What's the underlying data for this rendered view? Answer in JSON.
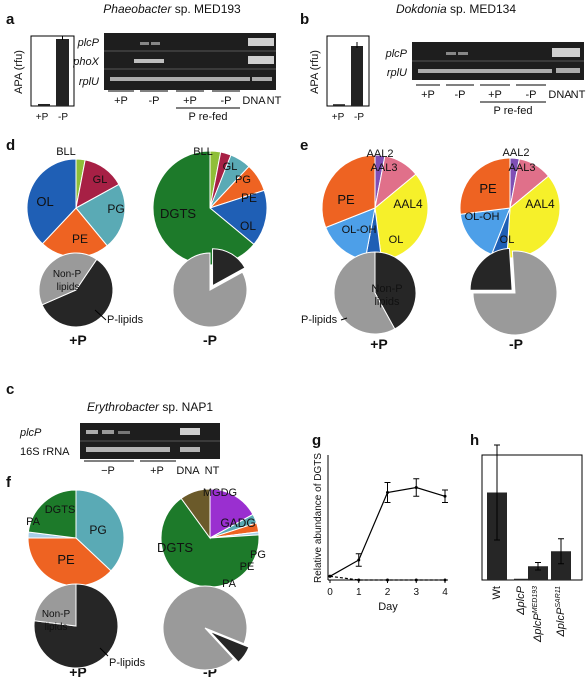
{
  "panels": {
    "a": {
      "letter": "a",
      "organism": "Phaeobacter",
      "strain": "sp. MED193",
      "bar_ylabel": "APA (rfu)",
      "bar_categories": [
        "+P",
        "-P"
      ],
      "bar_values": [
        0.03,
        1.0
      ],
      "gel_rows": [
        "plcP",
        "phoX",
        "rplU"
      ],
      "lanes": [
        "+P",
        "-P",
        "+P",
        "-P",
        "DNA",
        "NT"
      ],
      "refed_label": "P re-fed"
    },
    "b": {
      "letter": "b",
      "organism": "Dokdonia",
      "strain": "sp. MED134",
      "bar_ylabel": "APA (rfu)",
      "bar_categories": [
        "+P",
        "-P"
      ],
      "bar_values": [
        0.03,
        1.0
      ],
      "gel_rows": [
        "plcP",
        "rplU"
      ],
      "lanes": [
        "+P",
        "-P",
        "+P",
        "-P",
        "DNA",
        "NT"
      ],
      "refed_label": "P re-fed"
    },
    "c": {
      "letter": "c",
      "organism": "Erythrobacter",
      "strain": "sp. NAP1",
      "gel_rows": [
        "plcP",
        "16S rRNA"
      ],
      "lanes": [
        "−P",
        "+P",
        "DNA",
        "NT"
      ]
    },
    "d": {
      "letter": "d",
      "conditions": [
        "+P",
        "-P"
      ]
    },
    "e": {
      "letter": "e",
      "conditions": [
        "+P",
        "-P"
      ]
    },
    "f": {
      "letter": "f",
      "conditions": [
        "+P",
        "-P"
      ]
    },
    "g": {
      "letter": "g"
    },
    "h": {
      "letter": "h"
    }
  },
  "colors": {
    "OL": "#1f5fb5",
    "PE": "#ee6322",
    "PG": "#5aaab5",
    "GL": "#a72045",
    "BLL": "#8fbf38",
    "DGTS": "#1d7a2a",
    "AAL2": "#7f4fb5",
    "AAL3": "#e0708a",
    "AAL4": "#f6f02a",
    "OL-OH": "#4d9fe8",
    "PA": "#a8cfe8",
    "GADG": "#9a2fd0",
    "MGDG": "#6b5a2a",
    "p_lipids": "#262626",
    "non_p_lipids": "#9a9a9a"
  },
  "chart_data": [
    {
      "type": "pie",
      "panel": "d",
      "condition": "+P",
      "slices": [
        {
          "label": "BLL",
          "value": 3
        },
        {
          "label": "GL",
          "value": 14
        },
        {
          "label": "PG",
          "value": 22
        },
        {
          "label": "PE",
          "value": 23
        },
        {
          "label": "OL",
          "value": 38
        }
      ],
      "lipid_class": [
        {
          "label": "P-lipids",
          "value": 59
        },
        {
          "label": "Non-P lipids",
          "value": 41
        }
      ]
    },
    {
      "type": "pie",
      "panel": "d",
      "condition": "-P",
      "slices": [
        {
          "label": "BLL",
          "value": 3
        },
        {
          "label": "GL",
          "value": 3
        },
        {
          "label": "PG",
          "value": 6
        },
        {
          "label": "PE",
          "value": 8
        },
        {
          "label": "OL",
          "value": 16
        },
        {
          "label": "DGTS",
          "value": 64
        }
      ],
      "lipid_class": [
        {
          "label": "P-lipids",
          "value": 17
        },
        {
          "label": "Non-P lipids",
          "value": 83
        }
      ]
    },
    {
      "type": "pie",
      "panel": "e",
      "condition": "+P",
      "slices": [
        {
          "label": "AAL2",
          "value": 3
        },
        {
          "label": "AAL3",
          "value": 11
        },
        {
          "label": "AAL4",
          "value": 34
        },
        {
          "label": "OL",
          "value": 5
        },
        {
          "label": "OL-OH",
          "value": 16
        },
        {
          "label": "PE",
          "value": 31
        }
      ],
      "lipid_class": [
        {
          "label": "P-lipids",
          "value": 42
        },
        {
          "label": "Non-P lipids",
          "value": 58
        }
      ]
    },
    {
      "type": "pie",
      "panel": "e",
      "condition": "-P",
      "slices": [
        {
          "label": "AAL2",
          "value": 3
        },
        {
          "label": "AAL3",
          "value": 11
        },
        {
          "label": "AAL4",
          "value": 37
        },
        {
          "label": "OL",
          "value": 5
        },
        {
          "label": "OL-OH",
          "value": 17
        },
        {
          "label": "PE",
          "value": 27
        }
      ],
      "lipid_class": [
        {
          "label": "P-lipids",
          "value": 24
        },
        {
          "label": "Non-P lipids",
          "value": 76
        }
      ]
    },
    {
      "type": "pie",
      "panel": "f",
      "condition": "+P",
      "slices": [
        {
          "label": "PG",
          "value": 37
        },
        {
          "label": "PE",
          "value": 38
        },
        {
          "label": "PA",
          "value": 2
        },
        {
          "label": "DGTS",
          "value": 23
        }
      ],
      "lipid_class": [
        {
          "label": "P-lipids",
          "value": 77
        },
        {
          "label": "Non-P lipids",
          "value": 23
        }
      ]
    },
    {
      "type": "pie",
      "panel": "f",
      "condition": "-P",
      "slices": [
        {
          "label": "GADG",
          "value": 17
        },
        {
          "label": "PG",
          "value": 3
        },
        {
          "label": "PE",
          "value": 3
        },
        {
          "label": "PA",
          "value": 1
        },
        {
          "label": "DGTS",
          "value": 66
        },
        {
          "label": "MGDG",
          "value": 10
        }
      ],
      "lipid_class": [
        {
          "label": "P-lipids",
          "value": 7
        },
        {
          "label": "Non-P lipids",
          "value": 93
        }
      ]
    },
    {
      "type": "line",
      "panel": "g",
      "title": "",
      "xlabel": "Day",
      "ylabel": "Relative abundance of DGTS",
      "x": [
        0,
        1,
        2,
        3,
        4
      ],
      "xlim": [
        0,
        4
      ],
      "ylim": [
        0,
        1.0
      ],
      "series": [
        {
          "style": "solid",
          "values": [
            0.03,
            0.16,
            0.7,
            0.74,
            0.67
          ],
          "errors": [
            0,
            0.05,
            0.08,
            0.07,
            0.05
          ]
        },
        {
          "style": "dashed",
          "values": [
            0.03,
            0.0,
            0.0,
            0.0,
            0.0
          ]
        }
      ]
    },
    {
      "type": "bar",
      "panel": "h",
      "categories": [
        "Wt",
        "ΔplcP",
        "ΔplcP^MED193",
        "ΔplcP^SAR11"
      ],
      "values": [
        0.7,
        0.0,
        0.11,
        0.23
      ],
      "errors": [
        0.38,
        0,
        0.03,
        0.1
      ],
      "ylim": [
        0,
        1.0
      ]
    }
  ]
}
